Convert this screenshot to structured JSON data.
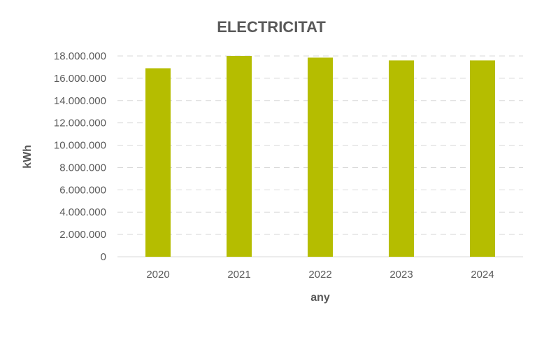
{
  "chart_data": {
    "type": "bar",
    "title": "ELECTRICITAT",
    "xlabel": "any",
    "ylabel": "kWh",
    "categories": [
      "2020",
      "2021",
      "2022",
      "2023",
      "2024"
    ],
    "values": [
      16900000,
      18000000,
      17850000,
      17600000,
      17600000
    ],
    "ylim": [
      0,
      18000000
    ],
    "yticks": [
      0,
      2000000,
      4000000,
      6000000,
      8000000,
      10000000,
      12000000,
      14000000,
      16000000,
      18000000
    ],
    "ytick_labels": [
      "0",
      "2.000.000",
      "4.000.000",
      "6.000.000",
      "8.000.000",
      "10.000.000",
      "12.000.000",
      "14.000.000",
      "16.000.000",
      "18.000.000"
    ],
    "grid": true,
    "legend": "none",
    "colors": {
      "bar": "#b5bd00"
    }
  }
}
